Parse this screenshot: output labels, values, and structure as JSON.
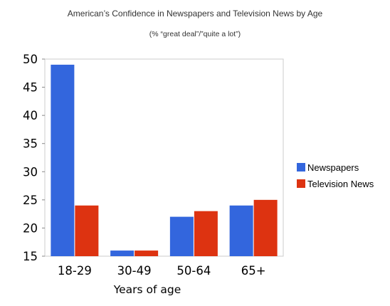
{
  "chart_data": {
    "type": "bar",
    "title": "American’s Confidence in Newspapers and Television News by Age",
    "subtitle": "(% “great deal”/”quite a lot”)",
    "categories": [
      "18-29",
      "30-49",
      "50-64",
      "65+"
    ],
    "series": [
      {
        "name": "Newspapers",
        "values": [
          49,
          16,
          22,
          24
        ],
        "color": "#3366dd"
      },
      {
        "name": "Television News",
        "values": [
          24,
          16,
          23,
          25
        ],
        "color": "#dd3311"
      }
    ],
    "xlabel": "Years of age",
    "ylabel": "",
    "ylim": [
      15,
      50
    ],
    "yticks": [
      15,
      20,
      25,
      30,
      35,
      40,
      45,
      50
    ],
    "grid": false,
    "legend": "right"
  }
}
